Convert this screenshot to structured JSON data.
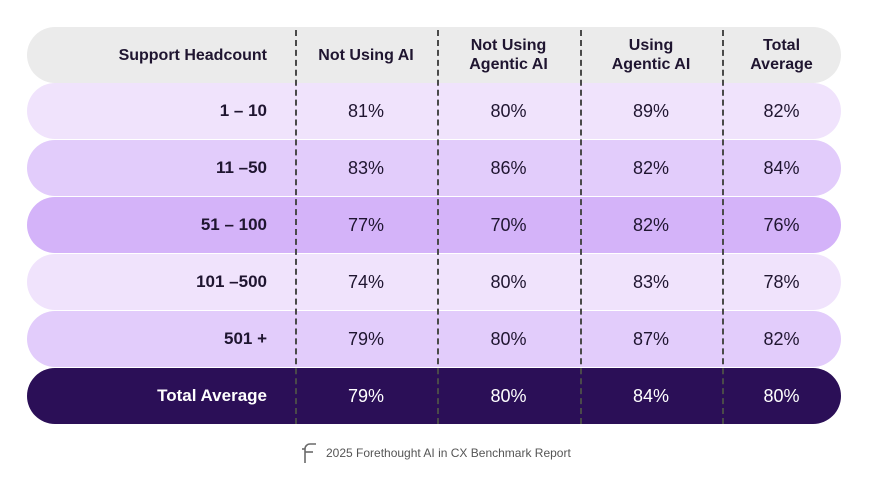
{
  "colors": {
    "header_bg": "#ebebeb",
    "row_1": "#f0e3fc",
    "row_2": "#e2ccfb",
    "row_3": "#d4b3f9",
    "row_4": "#f0e3fc",
    "row_5": "#e2ccfb",
    "total_bg": "#2b0f57"
  },
  "chart_data": {
    "type": "table",
    "columns": [
      "Support Headcount",
      "Not Using AI",
      "Not Using\nAgentic AI",
      "Using\nAgentic AI",
      "Total\nAverage"
    ],
    "rows": [
      {
        "label": "1 – 10",
        "values": [
          "81%",
          "80%",
          "89%",
          "82%"
        ]
      },
      {
        "label": "11 –50",
        "values": [
          "83%",
          "86%",
          "82%",
          "84%"
        ]
      },
      {
        "label": "51 – 100",
        "values": [
          "77%",
          "70%",
          "82%",
          "76%"
        ]
      },
      {
        "label": "101 –500",
        "values": [
          "74%",
          "80%",
          "83%",
          "78%"
        ]
      },
      {
        "label": "501 +",
        "values": [
          "79%",
          "80%",
          "87%",
          "82%"
        ]
      }
    ],
    "total_row": {
      "label": "Total Average",
      "values": [
        "79%",
        "80%",
        "84%",
        "80%"
      ]
    }
  },
  "footer": {
    "logo_icon": "forethought-logo-icon",
    "text": "2025 Forethought AI in CX Benchmark Report"
  }
}
